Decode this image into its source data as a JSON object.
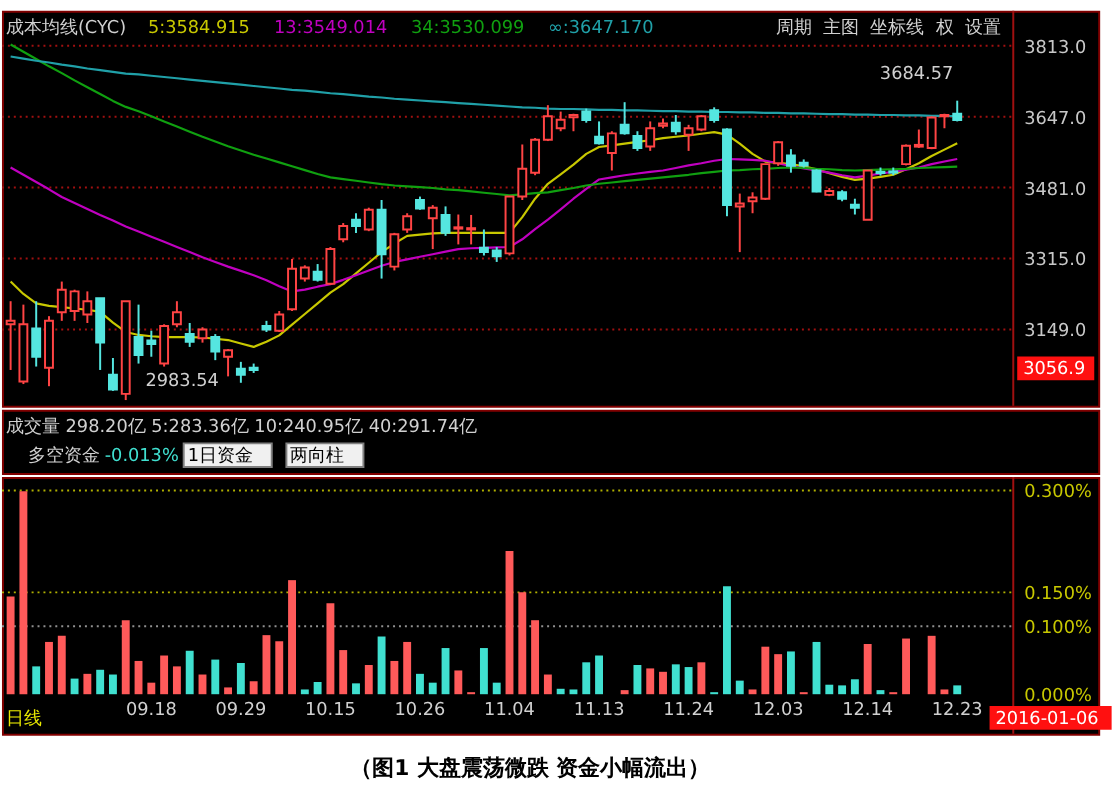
{
  "chart_data": [
    {
      "type": "candlestick",
      "title": "成本均线(CYC)",
      "legend": "top left",
      "grid": "y",
      "tick_labels": "y",
      "categories": [
        null,
        null,
        null,
        null,
        null,
        null,
        null,
        null,
        null,
        null,
        null,
        "09.18",
        null,
        null,
        null,
        null,
        null,
        null,
        "09.29",
        null,
        null,
        null,
        null,
        null,
        null,
        "10.15",
        null,
        null,
        null,
        null,
        null,
        null,
        "10.26",
        null,
        null,
        null,
        null,
        null,
        null,
        "11.04",
        null,
        null,
        null,
        null,
        null,
        null,
        "11.13",
        null,
        null,
        null,
        null,
        null,
        null,
        "11.24",
        null,
        null,
        null,
        null,
        null,
        null,
        "12.03",
        null,
        null,
        null,
        null,
        null,
        null,
        "12.14",
        null,
        null,
        null,
        null,
        null,
        null,
        "12.23"
      ],
      "ohlc": [
        [
          3161,
          3215,
          3054,
          3169
        ],
        [
          3027,
          3207,
          3021,
          3161
        ],
        [
          3151,
          3215,
          3062,
          3085
        ],
        [
          3059,
          3180,
          3016,
          3169
        ],
        [
          3189,
          3261,
          3169,
          3242
        ],
        [
          3192,
          3242,
          3169,
          3238
        ],
        [
          3184,
          3238,
          3164,
          3215
        ],
        [
          3222,
          3222,
          3054,
          3118
        ],
        [
          3043,
          3082,
          3005,
          3008
        ],
        [
          2998,
          3215,
          2983.54,
          3215
        ],
        [
          3131,
          3207,
          3069,
          3089
        ],
        [
          3123,
          3146,
          3085,
          3115
        ],
        [
          3069,
          3161,
          3062,
          3157
        ],
        [
          3161,
          3215,
          3154,
          3189
        ],
        [
          3138,
          3164,
          3108,
          3120
        ],
        [
          3128,
          3154,
          3118,
          3149
        ],
        [
          3131,
          3138,
          3077,
          3097
        ],
        [
          3085,
          3103,
          3039,
          3100
        ],
        [
          3057,
          3073,
          3024,
          3043
        ],
        [
          3059,
          3069,
          3047,
          3054
        ],
        [
          3157,
          3169,
          3143,
          3149
        ],
        [
          3146,
          3192,
          3143,
          3184
        ],
        [
          3196,
          3314,
          3192,
          3291
        ],
        [
          3268,
          3299,
          3261,
          3294
        ],
        [
          3284,
          3302,
          3261,
          3265
        ],
        [
          3256,
          3342,
          3253,
          3337
        ],
        [
          3360,
          3398,
          3353,
          3391
        ],
        [
          3406,
          3421,
          3375,
          3391
        ],
        [
          3383,
          3434,
          3379,
          3429
        ],
        [
          3429,
          3452,
          3268,
          3325
        ],
        [
          3296,
          3375,
          3287,
          3372
        ],
        [
          3383,
          3421,
          3375,
          3414
        ],
        [
          3452,
          3460,
          3429,
          3432
        ],
        [
          3409,
          3440,
          3337,
          3434
        ],
        [
          3417,
          3437,
          3368,
          3375
        ],
        [
          3385,
          3418,
          3348,
          3388
        ],
        [
          3383,
          3417,
          3348,
          3386
        ],
        [
          3340,
          3383,
          3322,
          3330
        ],
        [
          3334,
          3342,
          3307,
          3320
        ],
        [
          3327,
          3460,
          3322,
          3460
        ],
        [
          3460,
          3582,
          3452,
          3525
        ],
        [
          3516,
          3597,
          3510,
          3593
        ],
        [
          3593,
          3674,
          3590,
          3648
        ],
        [
          3620,
          3659,
          3613,
          3640
        ],
        [
          3646,
          3654,
          3613,
          3651
        ],
        [
          3659,
          3666,
          3633,
          3639
        ],
        [
          3600,
          3636,
          3582,
          3585
        ],
        [
          3562,
          3613,
          3521,
          3608
        ],
        [
          3628,
          3681,
          3605,
          3608
        ],
        [
          3602,
          3613,
          3567,
          3574
        ],
        [
          3577,
          3636,
          3567,
          3620
        ],
        [
          3626,
          3643,
          3620,
          3631
        ],
        [
          3633,
          3651,
          3605,
          3613
        ],
        [
          3605,
          3628,
          3567,
          3620
        ],
        [
          3617,
          3651,
          3613,
          3648
        ],
        [
          3662,
          3669,
          3633,
          3639
        ],
        [
          3617,
          3620,
          3414,
          3440
        ],
        [
          3437,
          3467,
          3330,
          3444
        ],
        [
          3449,
          3470,
          3421,
          3458
        ],
        [
          3455,
          3536,
          3452,
          3536
        ],
        [
          3538,
          3590,
          3532,
          3587
        ],
        [
          3556,
          3571,
          3516,
          3532
        ],
        [
          3539,
          3547,
          3528,
          3533
        ],
        [
          3521,
          3524,
          3470,
          3472
        ],
        [
          3464,
          3480,
          3461,
          3473
        ],
        [
          3470,
          3475,
          3449,
          3455
        ],
        [
          3441,
          3455,
          3418,
          3434
        ],
        [
          3406,
          3521,
          3406,
          3521
        ],
        [
          3518,
          3528,
          3509,
          3515
        ],
        [
          3519,
          3528,
          3510,
          3516
        ],
        [
          3536,
          3582,
          3533,
          3579
        ],
        [
          3577,
          3617,
          3574,
          3581
        ],
        [
          3574,
          3648,
          3571,
          3645
        ],
        [
          3648,
          3654,
          3620,
          3651
        ],
        [
          3654,
          3684.57,
          3636,
          3639
        ]
      ],
      "colors": [
        "#ff4444",
        "#ff4444",
        "#55e6e0",
        "#ff4444",
        "#ff4444",
        "#ff4444",
        "#ff4444",
        "#55e6e0",
        "#55e6e0",
        "#ff4444",
        "#55e6e0",
        "#55e6e0",
        "#ff4444",
        "#ff4444",
        "#55e6e0",
        "#ff4444",
        "#55e6e0",
        "#ff4444",
        "#55e6e0",
        "#55e6e0",
        "#55e6e0",
        "#ff4444",
        "#ff4444",
        "#ff4444",
        "#55e6e0",
        "#ff4444",
        "#ff4444",
        "#55e6e0",
        "#ff4444",
        "#55e6e0",
        "#ff4444",
        "#ff4444",
        "#55e6e0",
        "#ff4444",
        "#55e6e0",
        "#ff4444",
        "#ff4444",
        "#55e6e0",
        "#55e6e0",
        "#ff4444",
        "#ff4444",
        "#ff4444",
        "#ff4444",
        "#ff4444",
        "#ff4444",
        "#55e6e0",
        "#55e6e0",
        "#ff4444",
        "#55e6e0",
        "#55e6e0",
        "#ff4444",
        "#ff4444",
        "#55e6e0",
        "#ff4444",
        "#ff4444",
        "#55e6e0",
        "#55e6e0",
        "#ff4444",
        "#ff4444",
        "#ff4444",
        "#ff4444",
        "#55e6e0",
        "#55e6e0",
        "#55e6e0",
        "#ff4444",
        "#55e6e0",
        "#55e6e0",
        "#ff4444",
        "#55e6e0",
        "#55e6e0",
        "#ff4444",
        "#ff4444",
        "#ff4444",
        "#ff4444",
        "#55e6e0"
      ],
      "series": [
        {
          "type": "line",
          "name": "5:3584.915",
          "color": "#c8c800",
          "values": [
            3261,
            3232,
            3210,
            3204,
            3201,
            3198,
            3195,
            3190,
            3165,
            3143,
            3136,
            3133,
            3131,
            3131,
            3131,
            3130,
            3127,
            3124,
            3116,
            3108,
            3120,
            3135,
            3160,
            3185,
            3210,
            3235,
            3255,
            3280,
            3305,
            3330,
            3350,
            3368,
            3371,
            3374,
            3375,
            3375,
            3375,
            3375,
            3375,
            3375,
            3412,
            3455,
            3490,
            3512,
            3535,
            3560,
            3576,
            3580,
            3584,
            3588,
            3592,
            3597,
            3600,
            3603,
            3607,
            3611,
            3605,
            3584,
            3560,
            3542,
            3539,
            3536,
            3531,
            3524,
            3515,
            3506,
            3499,
            3502,
            3506,
            3511,
            3524,
            3538,
            3555,
            3570,
            3585
          ]
        },
        {
          "type": "line",
          "name": "13:3549.014",
          "color": "#c000c0",
          "values": [
            3528,
            3511,
            3494,
            3477,
            3459,
            3445,
            3431,
            3417,
            3404,
            3390,
            3378,
            3366,
            3354,
            3342,
            3330,
            3318,
            3307,
            3296,
            3286,
            3276,
            3264,
            3250,
            3238,
            3242,
            3249,
            3255,
            3265,
            3276,
            3287,
            3298,
            3307,
            3313,
            3319,
            3325,
            3331,
            3337,
            3339,
            3340,
            3341,
            3342,
            3360,
            3384,
            3406,
            3430,
            3455,
            3478,
            3500,
            3505,
            3510,
            3514,
            3518,
            3521,
            3527,
            3533,
            3538,
            3544,
            3548,
            3547,
            3546,
            3544,
            3538,
            3531,
            3526,
            3521,
            3516,
            3510,
            3505,
            3509,
            3514,
            3518,
            3523,
            3528,
            3536,
            3542,
            3548
          ]
        },
        {
          "type": "line",
          "name": "34:3530.099",
          "color": "#10a010",
          "values": [
            3816,
            3799,
            3782,
            3765,
            3749,
            3732,
            3716,
            3700,
            3684,
            3670,
            3660,
            3648,
            3636,
            3624,
            3612,
            3600,
            3589,
            3578,
            3568,
            3558,
            3549,
            3540,
            3531,
            3522,
            3513,
            3505,
            3501,
            3497,
            3493,
            3489,
            3486,
            3484,
            3482,
            3480,
            3477,
            3475,
            3472,
            3469,
            3466,
            3463,
            3465,
            3468,
            3470,
            3475,
            3480,
            3486,
            3490,
            3493,
            3496,
            3499,
            3502,
            3505,
            3508,
            3511,
            3515,
            3518,
            3521,
            3522,
            3524,
            3525,
            3527,
            3528,
            3527,
            3525,
            3524,
            3522,
            3521,
            3522,
            3523,
            3524,
            3525,
            3527,
            3528,
            3529,
            3530
          ]
        },
        {
          "type": "line",
          "name": "∞:3647.170",
          "color": "#20a0a8",
          "values": [
            3788,
            3783,
            3778,
            3774,
            3769,
            3765,
            3760,
            3756,
            3752,
            3748,
            3746,
            3743,
            3740,
            3737,
            3734,
            3731,
            3728,
            3725,
            3722,
            3719,
            3716,
            3713,
            3710,
            3708,
            3705,
            3702,
            3700,
            3697,
            3694,
            3692,
            3689,
            3687,
            3685,
            3683,
            3681,
            3679,
            3677,
            3675,
            3673,
            3671,
            3669,
            3668,
            3666,
            3665,
            3665,
            3664,
            3663,
            3663,
            3662,
            3662,
            3661,
            3660,
            3660,
            3659,
            3659,
            3658,
            3658,
            3657,
            3657,
            3656,
            3656,
            3655,
            3655,
            3654,
            3653,
            3653,
            3652,
            3652,
            3651,
            3651,
            3650,
            3650,
            3649,
            3649,
            3648
          ]
        }
      ],
      "ylim": [
        2970,
        3895
      ],
      "yticks": [
        {
          "value": 3149,
          "label": "3149.0"
        },
        {
          "value": 3315,
          "label": "3315.0"
        },
        {
          "value": 3481,
          "label": "3481.0"
        },
        {
          "value": 3647,
          "label": "3647.0"
        },
        {
          "value": 3813,
          "label": "3813.0"
        }
      ],
      "annotations": [
        "周期",
        "主图",
        "坐标线",
        "权",
        "设置",
        "2983.54",
        "3684.57",
        "3056.9"
      ]
    },
    {
      "type": "bar",
      "title": "多空资金",
      "categories": [
        null,
        null,
        null,
        null,
        null,
        null,
        null,
        null,
        null,
        null,
        null,
        "09.18",
        null,
        null,
        null,
        null,
        null,
        null,
        "09.29",
        null,
        null,
        null,
        null,
        null,
        null,
        "10.15",
        null,
        null,
        null,
        null,
        null,
        null,
        "10.26",
        null,
        null,
        null,
        null,
        null,
        null,
        "11.04",
        null,
        null,
        null,
        null,
        null,
        null,
        "11.13",
        null,
        null,
        null,
        null,
        null,
        null,
        "11.24",
        null,
        null,
        null,
        null,
        null,
        null,
        "12.03",
        null,
        null,
        null,
        null,
        null,
        null,
        "12.14",
        null,
        null,
        null,
        null,
        null,
        null,
        "12.23"
      ],
      "values": [
        0.144,
        0.299,
        0.041,
        0.077,
        0.086,
        0.023,
        0.03,
        0.036,
        0.029,
        0.109,
        0.049,
        0.017,
        0.057,
        0.041,
        0.064,
        0.029,
        0.051,
        0.01,
        0.046,
        0.019,
        0.087,
        0.078,
        0.168,
        0.007,
        0.018,
        0.134,
        0.065,
        0.016,
        0.043,
        0.085,
        0.049,
        0.077,
        0.03,
        0.017,
        0.068,
        0.035,
        0.003,
        0.068,
        0.017,
        0.211,
        0.15,
        0.109,
        0.029,
        0.008,
        0.007,
        0.047,
        0.057,
        0,
        0.006,
        0.043,
        0.038,
        0.033,
        0.044,
        0.04,
        0.047,
        0.003,
        0.159,
        0.02,
        0.007,
        0.07,
        0.059,
        0.063,
        0.003,
        0.077,
        0.014,
        0.013,
        0.022,
        0.074,
        0.006,
        0.003,
        0.082,
        0,
        0.086,
        0.007,
        0.013
      ],
      "colors": [
        "#ff5a5a",
        "#ff5a5a",
        "#40e0d0",
        "#ff5a5a",
        "#ff5a5a",
        "#40e0d0",
        "#ff5a5a",
        "#40e0d0",
        "#40e0d0",
        "#ff5a5a",
        "#ff5a5a",
        "#ff5a5a",
        "#ff5a5a",
        "#ff5a5a",
        "#40e0d0",
        "#ff5a5a",
        "#40e0d0",
        "#ff5a5a",
        "#40e0d0",
        "#ff5a5a",
        "#ff5a5a",
        "#ff5a5a",
        "#ff5a5a",
        "#40e0d0",
        "#40e0d0",
        "#ff5a5a",
        "#ff5a5a",
        "#40e0d0",
        "#ff5a5a",
        "#40e0d0",
        "#ff5a5a",
        "#ff5a5a",
        "#40e0d0",
        "#40e0d0",
        "#40e0d0",
        "#ff5a5a",
        "#ff5a5a",
        "#40e0d0",
        "#40e0d0",
        "#ff5a5a",
        "#ff5a5a",
        "#ff5a5a",
        "#ff5a5a",
        "#40e0d0",
        "#40e0d0",
        "#40e0d0",
        "#40e0d0",
        "#ff5a5a",
        "#ff5a5a",
        "#40e0d0",
        "#ff5a5a",
        "#ff5a5a",
        "#40e0d0",
        "#40e0d0",
        "#ff5a5a",
        "#40e0d0",
        "#40e0d0",
        "#40e0d0",
        "#ff5a5a",
        "#ff5a5a",
        "#ff5a5a",
        "#40e0d0",
        "#ff5a5a",
        "#40e0d0",
        "#40e0d0",
        "#40e0d0",
        "#40e0d0",
        "#ff5a5a",
        "#40e0d0",
        "#ff5a5a",
        "#ff5a5a",
        "#ff5a5a",
        "#ff5a5a",
        "#ff5a5a",
        "#40e0d0"
      ],
      "ylim": [
        0,
        0.32
      ],
      "yticks": [
        {
          "value": 0,
          "label": "0.000%"
        },
        {
          "value": 0.1,
          "label": "0.100%"
        },
        {
          "value": 0.15,
          "label": "0.150%"
        },
        {
          "value": 0.3,
          "label": "0.300%"
        }
      ],
      "ref_lines": [
        {
          "axis": "y",
          "value": 0.3,
          "color": "#b0b000",
          "line_style": "dotted"
        },
        {
          "axis": "y",
          "value": 0.15,
          "color": "#b0b000",
          "line_style": "dotted"
        },
        {
          "axis": "y",
          "value": 0.1,
          "color": "#909090",
          "line_style": "dotted"
        }
      ],
      "annotations": [
        "成交量 298.20亿 5:283.36亿 10:240.95亿 40:291.74亿",
        "-0.013%",
        "1日资金",
        "两向柱",
        "日线",
        "2016-01-06",
        "（图1 大盘震荡微跌 资金小幅流出）"
      ]
    }
  ]
}
